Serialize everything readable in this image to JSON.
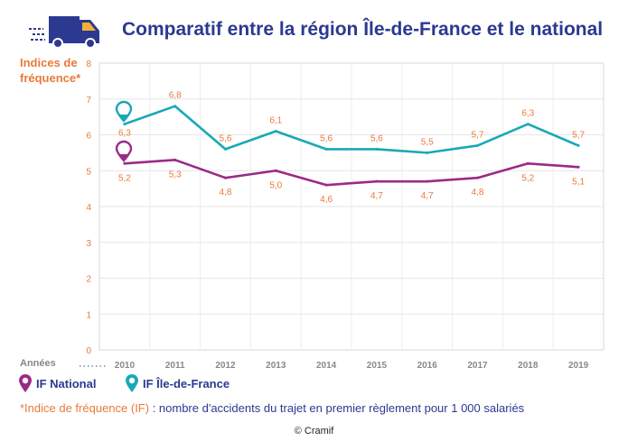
{
  "title": "Comparatif entre la région Île-de-France et le national",
  "ylabel_line1": "Indices de",
  "ylabel_line2": "fréquence*",
  "note_prefix": "*Indice de fréquence (IF)",
  "note_text": " : nombre d'accidents du trajet en premier règlement pour 1 000 salariés",
  "copyright": "© Cramif",
  "legend": {
    "national": "IF National",
    "idf": "IF Île-de-France"
  },
  "colors": {
    "national": "#9b2a87",
    "idf": "#18a8b8",
    "title": "#2b3990",
    "accent": "#e87a3a"
  },
  "chart_data": {
    "type": "line",
    "title": "Comparatif entre la région Île-de-France et le national",
    "xlabel": "Années",
    "ylabel": "Indices de fréquence*",
    "x": [
      "2010",
      "2011",
      "2012",
      "2013",
      "2014",
      "2015",
      "2016",
      "2017",
      "2018",
      "2019"
    ],
    "ylim": [
      0,
      8
    ],
    "yticks": [
      "0",
      "1",
      "2",
      "3",
      "4",
      "5",
      "6",
      "7",
      "8"
    ],
    "grid": true,
    "series": [
      {
        "name": "IF Île-de-France",
        "values": [
          6.3,
          6.8,
          5.6,
          6.1,
          5.6,
          5.6,
          5.5,
          5.7,
          6.3,
          5.7
        ],
        "labels": [
          "6,3",
          "6,8",
          "5,6",
          "6,1",
          "5,6",
          "5,6",
          "5,5",
          "5,7",
          "6,3",
          "5,7"
        ]
      },
      {
        "name": "IF National",
        "values": [
          5.2,
          5.3,
          4.8,
          5.0,
          4.6,
          4.7,
          4.7,
          4.8,
          5.2,
          5.1
        ],
        "labels": [
          "5,2",
          "5,3",
          "4,8",
          "5,0",
          "4,6",
          "4,7",
          "4,7",
          "4,8",
          "5,2",
          "5,1"
        ]
      }
    ]
  }
}
